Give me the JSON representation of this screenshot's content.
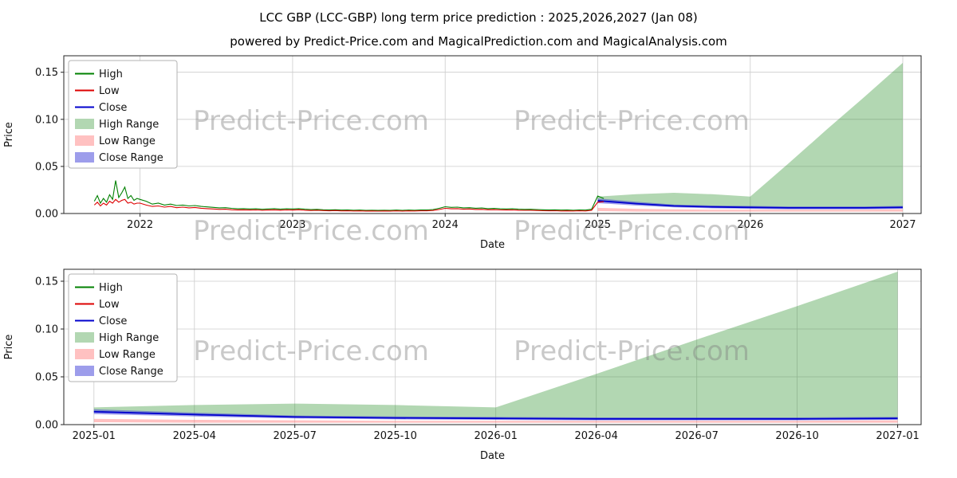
{
  "figure": {
    "title": "LCC GBP (LCC-GBP) long term price prediction : 2025,2026,2027 (Jan 08)",
    "subtitle": "powered by Predict-Price.com and MagicalPrediction.com and MagicalAnalysis.com",
    "watermark": "Predict-Price.com"
  },
  "colors": {
    "high": "#008000",
    "low": "#dd0000",
    "close": "#0000cd",
    "high_range": "rgba(34,139,34,0.35)",
    "low_range": "rgba(255,99,99,0.4)",
    "close_range": "rgba(60,60,215,0.5)",
    "grid": "#cccccc",
    "border": "#262626",
    "watermark": "#808080"
  },
  "legend": {
    "items": [
      {
        "label": "High",
        "swatch": "line",
        "color": "high"
      },
      {
        "label": "Low",
        "swatch": "line",
        "color": "low"
      },
      {
        "label": "Close",
        "swatch": "line",
        "color": "close"
      },
      {
        "label": "High Range",
        "swatch": "patch",
        "color": "high_range"
      },
      {
        "label": "Low Range",
        "swatch": "patch",
        "color": "low_range"
      },
      {
        "label": "Close Range",
        "swatch": "patch",
        "color": "close_range"
      }
    ]
  },
  "chart_data": [
    {
      "type": "line",
      "title": "",
      "xlabel": "Date",
      "ylabel": "Price",
      "xlim": [
        2021.5,
        2027.12
      ],
      "ylim": [
        0,
        0.1675
      ],
      "grid": true,
      "legend_position": "upper left",
      "xticks": {
        "values": [
          2022,
          2023,
          2024,
          2025,
          2026,
          2027
        ],
        "labels": [
          "2022",
          "2023",
          "2024",
          "2025",
          "2026",
          "2027"
        ]
      },
      "yticks": {
        "values": [
          0.0,
          0.05,
          0.1,
          0.15
        ],
        "labels": [
          "0.00",
          "0.05",
          "0.10",
          "0.15"
        ]
      },
      "historical": {
        "x": [
          2021.7,
          2021.72,
          2021.74,
          2021.76,
          2021.78,
          2021.8,
          2021.82,
          2021.84,
          2021.86,
          2021.88,
          2021.9,
          2021.92,
          2021.94,
          2021.96,
          2021.98,
          2022.0,
          2022.04,
          2022.08,
          2022.12,
          2022.16,
          2022.2,
          2022.24,
          2022.28,
          2022.32,
          2022.36,
          2022.4,
          2022.44,
          2022.48,
          2022.52,
          2022.56,
          2022.6,
          2022.64,
          2022.68,
          2022.72,
          2022.76,
          2022.8,
          2022.84,
          2022.88,
          2022.92,
          2022.96,
          2023.0,
          2023.04,
          2023.08,
          2023.12,
          2023.16,
          2023.2,
          2023.24,
          2023.28,
          2023.32,
          2023.36,
          2023.4,
          2023.44,
          2023.48,
          2023.52,
          2023.56,
          2023.6,
          2023.64,
          2023.68,
          2023.72,
          2023.76,
          2023.8,
          2023.84,
          2023.88,
          2023.92,
          2023.96,
          2024.0,
          2024.04,
          2024.08,
          2024.12,
          2024.16,
          2024.2,
          2024.24,
          2024.28,
          2024.32,
          2024.36,
          2024.4,
          2024.44,
          2024.48,
          2024.52,
          2024.56,
          2024.6,
          2024.64,
          2024.68,
          2024.72,
          2024.76,
          2024.8,
          2024.84,
          2024.88,
          2024.92,
          2024.96,
          2025.0,
          2025.04
        ],
        "high": [
          0.013,
          0.019,
          0.011,
          0.016,
          0.012,
          0.02,
          0.015,
          0.035,
          0.017,
          0.022,
          0.028,
          0.016,
          0.019,
          0.014,
          0.016,
          0.015,
          0.013,
          0.01,
          0.011,
          0.009,
          0.01,
          0.0085,
          0.009,
          0.008,
          0.0085,
          0.0075,
          0.007,
          0.0065,
          0.006,
          0.0062,
          0.0055,
          0.005,
          0.0052,
          0.0048,
          0.005,
          0.0045,
          0.0048,
          0.0052,
          0.0046,
          0.005,
          0.0048,
          0.0052,
          0.0046,
          0.0042,
          0.0044,
          0.004,
          0.0038,
          0.004,
          0.0036,
          0.0037,
          0.0035,
          0.0036,
          0.0034,
          0.0035,
          0.0033,
          0.0035,
          0.0034,
          0.0036,
          0.0034,
          0.0036,
          0.0035,
          0.0037,
          0.0038,
          0.0042,
          0.0055,
          0.0072,
          0.0065,
          0.0068,
          0.006,
          0.0062,
          0.0056,
          0.0058,
          0.0052,
          0.0054,
          0.005,
          0.0048,
          0.005,
          0.0046,
          0.0044,
          0.0045,
          0.0042,
          0.004,
          0.0038,
          0.0039,
          0.0036,
          0.0037,
          0.0035,
          0.0038,
          0.0036,
          0.0045,
          0.0185,
          0.016
        ],
        "low": [
          0.009,
          0.012,
          0.008,
          0.011,
          0.009,
          0.013,
          0.011,
          0.015,
          0.012,
          0.014,
          0.015,
          0.011,
          0.012,
          0.01,
          0.011,
          0.011,
          0.009,
          0.0075,
          0.008,
          0.0068,
          0.0075,
          0.0062,
          0.0068,
          0.006,
          0.0064,
          0.0056,
          0.0052,
          0.0048,
          0.0044,
          0.0046,
          0.004,
          0.0037,
          0.0039,
          0.0036,
          0.0038,
          0.0034,
          0.0036,
          0.0039,
          0.0035,
          0.0038,
          0.0036,
          0.004,
          0.0035,
          0.0032,
          0.0034,
          0.0031,
          0.0029,
          0.0031,
          0.0028,
          0.0029,
          0.0027,
          0.0028,
          0.0026,
          0.0027,
          0.0025,
          0.0027,
          0.0026,
          0.0028,
          0.0026,
          0.0028,
          0.0027,
          0.0029,
          0.0029,
          0.0032,
          0.0042,
          0.0055,
          0.005,
          0.0052,
          0.0046,
          0.0048,
          0.0043,
          0.0044,
          0.004,
          0.0041,
          0.0038,
          0.0037,
          0.0038,
          0.0035,
          0.0034,
          0.0034,
          0.0032,
          0.003,
          0.0029,
          0.003,
          0.0027,
          0.0028,
          0.0027,
          0.0029,
          0.0027,
          0.0034,
          0.012,
          0.0125
        ]
      },
      "forecast": {
        "x": [
          2025.0,
          2025.25,
          2025.5,
          2025.75,
          2026.0,
          2026.25,
          2026.5,
          2026.75,
          2027.0
        ],
        "high_upper": [
          0.018,
          0.0205,
          0.022,
          0.0205,
          0.018,
          0.053,
          0.089,
          0.124,
          0.16
        ],
        "high_lower": [
          0.013,
          0.01,
          0.008,
          0.007,
          0.0065,
          0.006,
          0.006,
          0.006,
          0.006
        ],
        "close": [
          0.0135,
          0.0105,
          0.008,
          0.007,
          0.0065,
          0.006,
          0.006,
          0.006,
          0.0065
        ],
        "close_upper": [
          0.016,
          0.0125,
          0.0095,
          0.0085,
          0.008,
          0.0075,
          0.0075,
          0.0075,
          0.008
        ],
        "close_lower": [
          0.011,
          0.0085,
          0.0065,
          0.0055,
          0.005,
          0.0045,
          0.0045,
          0.0045,
          0.005
        ],
        "low_upper": [
          0.006,
          0.005,
          0.0045,
          0.004,
          0.004,
          0.004,
          0.004,
          0.004,
          0.0045
        ],
        "low_lower": [
          0.0025,
          0.002,
          0.002,
          0.002,
          0.002,
          0.002,
          0.002,
          0.002,
          0.002
        ]
      }
    },
    {
      "type": "area",
      "title": "",
      "xlabel": "Date",
      "ylabel": "Price",
      "xlim": [
        -0.9,
        24.7
      ],
      "ylim": [
        0,
        0.1625
      ],
      "grid": true,
      "legend_position": "upper left",
      "xticks": {
        "values": [
          0,
          3,
          6,
          9,
          12,
          15,
          18,
          21,
          24
        ],
        "labels": [
          "2025-01",
          "2025-04",
          "2025-07",
          "2025-10",
          "2026-01",
          "2026-04",
          "2026-07",
          "2026-10",
          "2027-01"
        ]
      },
      "yticks": {
        "values": [
          0.0,
          0.05,
          0.1,
          0.15
        ],
        "labels": [
          "0.00",
          "0.05",
          "0.10",
          "0.15"
        ]
      },
      "forecast": {
        "x": [
          0,
          3,
          6,
          9,
          12,
          15,
          18,
          21,
          24
        ],
        "high_upper": [
          0.018,
          0.0205,
          0.022,
          0.0205,
          0.018,
          0.053,
          0.089,
          0.124,
          0.16
        ],
        "high_lower": [
          0.013,
          0.01,
          0.008,
          0.007,
          0.0065,
          0.006,
          0.006,
          0.006,
          0.006
        ],
        "close": [
          0.0135,
          0.0105,
          0.008,
          0.007,
          0.0065,
          0.006,
          0.006,
          0.006,
          0.0065
        ],
        "close_upper": [
          0.016,
          0.0125,
          0.0095,
          0.0085,
          0.008,
          0.0075,
          0.0075,
          0.0075,
          0.008
        ],
        "close_lower": [
          0.011,
          0.0085,
          0.0065,
          0.0055,
          0.005,
          0.0045,
          0.0045,
          0.0045,
          0.005
        ],
        "low_upper": [
          0.006,
          0.005,
          0.0045,
          0.004,
          0.004,
          0.004,
          0.004,
          0.004,
          0.0045
        ],
        "low_lower": [
          0.0025,
          0.002,
          0.002,
          0.002,
          0.002,
          0.002,
          0.002,
          0.002,
          0.002
        ]
      }
    }
  ]
}
